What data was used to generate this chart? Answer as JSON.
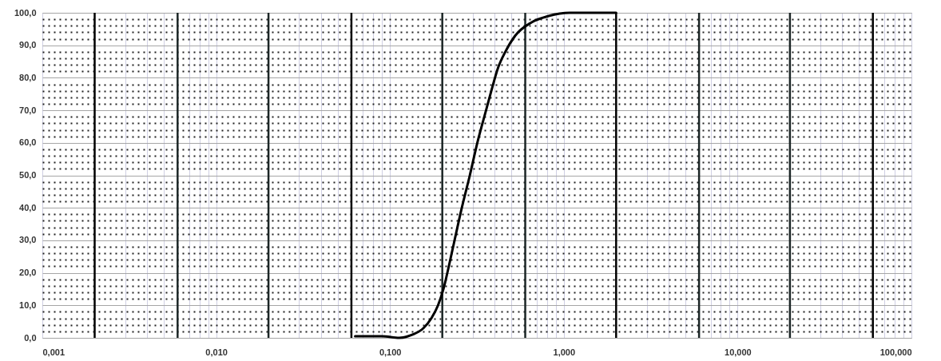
{
  "chart_data": {
    "type": "line",
    "log": "x",
    "grid": true,
    "marker": "none",
    "xlim": [
      0.001,
      100
    ],
    "xticks": [
      {
        "value": 0.001,
        "label": "0,001"
      },
      {
        "value": 0.003,
        "label": null
      },
      {
        "value": 0.004,
        "label": null
      },
      {
        "value": 0.005,
        "label": null
      },
      {
        "value": 0.007,
        "label": null
      },
      {
        "value": 0.008,
        "label": null
      },
      {
        "value": 0.009,
        "label": null
      },
      {
        "value": 0.01,
        "label": "0,010"
      },
      {
        "value": 0.03,
        "label": null
      },
      {
        "value": 0.04,
        "label": null
      },
      {
        "value": 0.05,
        "label": null
      },
      {
        "value": 0.07,
        "label": null
      },
      {
        "value": 0.08,
        "label": null
      },
      {
        "value": 0.09,
        "label": null
      },
      {
        "value": 0.1,
        "label": "0,100"
      },
      {
        "value": 0.3,
        "label": null
      },
      {
        "value": 0.4,
        "label": null
      },
      {
        "value": 0.5,
        "label": null
      },
      {
        "value": 0.7,
        "label": null
      },
      {
        "value": 0.8,
        "label": null
      },
      {
        "value": 0.9,
        "label": null
      },
      {
        "value": 1,
        "label": "1,000"
      },
      {
        "value": 3,
        "label": null
      },
      {
        "value": 4,
        "label": null
      },
      {
        "value": 5,
        "label": null
      },
      {
        "value": 7,
        "label": null
      },
      {
        "value": 8,
        "label": null
      },
      {
        "value": 9,
        "label": null
      },
      {
        "value": 10,
        "label": "10,000"
      },
      {
        "value": 30,
        "label": null
      },
      {
        "value": 40,
        "label": null
      },
      {
        "value": 50,
        "label": null
      },
      {
        "value": 70,
        "label": null
      },
      {
        "value": 80,
        "label": null
      },
      {
        "value": 90,
        "label": null
      },
      {
        "value": 100,
        "label": "100,000"
      }
    ],
    "ylim": [
      0,
      100
    ],
    "yticks": [
      {
        "value": 0,
        "label": "0,0"
      },
      {
        "value": 2,
        "label": null
      },
      {
        "value": 4,
        "label": null
      },
      {
        "value": 6,
        "label": null
      },
      {
        "value": 8,
        "label": null
      },
      {
        "value": 10,
        "label": "10,0"
      },
      {
        "value": 12,
        "label": null
      },
      {
        "value": 14,
        "label": null
      },
      {
        "value": 16,
        "label": null
      },
      {
        "value": 18,
        "label": null
      },
      {
        "value": 20,
        "label": "20,0"
      },
      {
        "value": 22,
        "label": null
      },
      {
        "value": 24,
        "label": null
      },
      {
        "value": 26,
        "label": null
      },
      {
        "value": 28,
        "label": null
      },
      {
        "value": 30,
        "label": "30,0"
      },
      {
        "value": 32,
        "label": null
      },
      {
        "value": 34,
        "label": null
      },
      {
        "value": 36,
        "label": null
      },
      {
        "value": 38,
        "label": null
      },
      {
        "value": 40,
        "label": "40,0"
      },
      {
        "value": 42,
        "label": null
      },
      {
        "value": 44,
        "label": null
      },
      {
        "value": 46,
        "label": null
      },
      {
        "value": 48,
        "label": null
      },
      {
        "value": 50,
        "label": "50,0"
      },
      {
        "value": 52,
        "label": null
      },
      {
        "value": 54,
        "label": null
      },
      {
        "value": 56,
        "label": null
      },
      {
        "value": 58,
        "label": null
      },
      {
        "value": 60,
        "label": "60,0"
      },
      {
        "value": 62,
        "label": null
      },
      {
        "value": 64,
        "label": null
      },
      {
        "value": 66,
        "label": null
      },
      {
        "value": 68,
        "label": null
      },
      {
        "value": 70,
        "label": "70,0"
      },
      {
        "value": 72,
        "label": null
      },
      {
        "value": 74,
        "label": null
      },
      {
        "value": 76,
        "label": null
      },
      {
        "value": 78,
        "label": null
      },
      {
        "value": 80,
        "label": "80,0"
      },
      {
        "value": 82,
        "label": null
      },
      {
        "value": 84,
        "label": null
      },
      {
        "value": 86,
        "label": null
      },
      {
        "value": 88,
        "label": null
      },
      {
        "value": 90,
        "label": "90,0"
      },
      {
        "value": 92,
        "label": null
      },
      {
        "value": 94,
        "label": null
      },
      {
        "value": 96,
        "label": null
      },
      {
        "value": 98,
        "label": null
      },
      {
        "value": 100,
        "label": "100,0"
      }
    ],
    "x": [
      0.063,
      0.09,
      0.113,
      0.135,
      0.156,
      0.173,
      0.189,
      0.203,
      0.218,
      0.233,
      0.259,
      0.288,
      0.318,
      0.357,
      0.383,
      0.418,
      0.461,
      0.526,
      0.65,
      0.817,
      1.08,
      2.0
    ],
    "series": [
      {
        "color": "#000000",
        "values": [
          0.5,
          0.5,
          0,
          1,
          3,
          6,
          10,
          15,
          22,
          29,
          40,
          50,
          60,
          70,
          76,
          83,
          88,
          93,
          97,
          99,
          100,
          100
        ]
      }
    ],
    "ref_lines": [
      {
        "axis": "x",
        "value": 0.002,
        "color": "#000000"
      },
      {
        "axis": "x",
        "value": 0.006,
        "color": "#1c2626"
      },
      {
        "axis": "x",
        "value": 0.02,
        "color": "#1c2626"
      },
      {
        "axis": "x",
        "value": 0.06,
        "color": "#000000"
      },
      {
        "axis": "x",
        "value": 0.2,
        "color": "#1c2626"
      },
      {
        "axis": "x",
        "value": 0.6,
        "color": "#1c2626"
      },
      {
        "axis": "x",
        "value": 2,
        "color": "#000000"
      },
      {
        "axis": "x",
        "value": 6,
        "color": "#1c2626"
      },
      {
        "axis": "x",
        "value": 20,
        "color": "#1c2626"
      },
      {
        "axis": "x",
        "value": 60,
        "color": "#000000"
      }
    ]
  }
}
